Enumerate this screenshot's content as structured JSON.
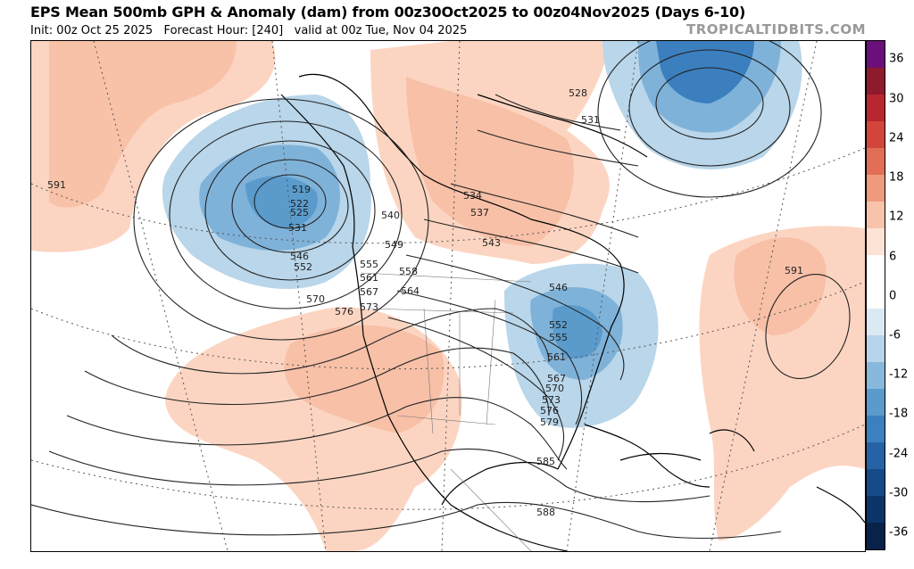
{
  "header": {
    "title": "EPS Mean 500mb GPH & Anomaly (dam) from 00z30Oct2025 to 00z04Nov2025 (Days 6-10)",
    "subtitle": "Init: 00z Oct 25 2025   Forecast Hour: [240]   valid at 00z Tue, Nov 04 2025",
    "brand": "TROPICALTIDBITS.COM"
  },
  "colorbar": {
    "ticks": [
      "36",
      "30",
      "24",
      "18",
      "12",
      "6",
      "0",
      "-6",
      "-12",
      "-18",
      "-24",
      "-30",
      "-36"
    ],
    "colors": [
      "#6b0f7a",
      "#8e1a2e",
      "#b8262f",
      "#d2453a",
      "#e26f55",
      "#ef9a7c",
      "#f7c4ab",
      "#fde3d6",
      "#ffffff",
      "#ffffff",
      "#dbe9f3",
      "#b6d4ea",
      "#88b9dd",
      "#5a9bcc",
      "#3d80be",
      "#2563a6",
      "#174a88",
      "#0d3468",
      "#08224a"
    ]
  },
  "contour_labels": [
    "591",
    "519",
    "522",
    "525",
    "531",
    "546",
    "552",
    "570",
    "576",
    "528",
    "531",
    "534",
    "537",
    "540",
    "543",
    "549",
    "555",
    "558",
    "561",
    "564",
    "567",
    "573",
    "546",
    "552",
    "555",
    "561",
    "567",
    "570",
    "573",
    "576",
    "579",
    "585",
    "588",
    "591"
  ],
  "anomaly_colors": {
    "positive_light": "#fcd5c2",
    "positive_mid": "#f4b294",
    "negative_light": "#b9d6ea",
    "negative_mid": "#7fb2d9",
    "negative_strong": "#3b7fbe",
    "land": "#000000",
    "grid": "#555555"
  }
}
